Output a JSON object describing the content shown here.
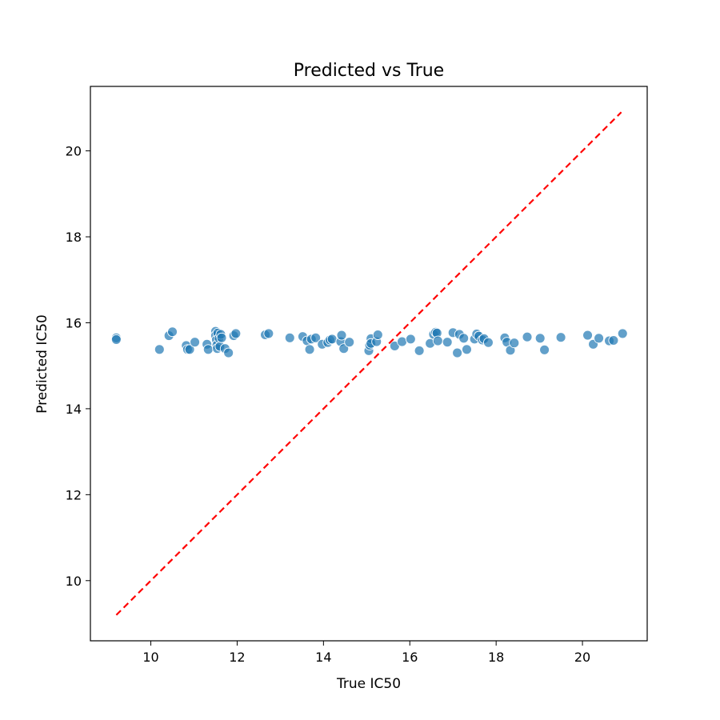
{
  "chart_data": {
    "type": "scatter",
    "title": "Predicted vs True",
    "xlabel": "True IC50",
    "ylabel": "Predicted IC50",
    "xlim": [
      8.6,
      21.5
    ],
    "ylim": [
      8.6,
      21.5
    ],
    "xticks": [
      "10",
      "12",
      "14",
      "16",
      "18",
      "20"
    ],
    "yticks": [
      "10",
      "12",
      "14",
      "16",
      "18",
      "20"
    ],
    "grid": false,
    "colors": {
      "points": "#1f77b4",
      "reference": "#ff0000"
    },
    "reference_line": {
      "x": [
        9.2,
        20.9
      ],
      "y": [
        9.2,
        20.9
      ]
    },
    "points": [
      {
        "x": 9.2,
        "y": 15.65
      },
      {
        "x": 9.2,
        "y": 15.61
      },
      {
        "x": 10.2,
        "y": 15.38
      },
      {
        "x": 10.42,
        "y": 15.7
      },
      {
        "x": 10.5,
        "y": 15.79
      },
      {
        "x": 10.82,
        "y": 15.47
      },
      {
        "x": 10.85,
        "y": 15.38
      },
      {
        "x": 10.9,
        "y": 15.38
      },
      {
        "x": 11.02,
        "y": 15.55
      },
      {
        "x": 11.3,
        "y": 15.5
      },
      {
        "x": 11.33,
        "y": 15.38
      },
      {
        "x": 11.5,
        "y": 15.8
      },
      {
        "x": 11.5,
        "y": 15.7
      },
      {
        "x": 11.52,
        "y": 15.6
      },
      {
        "x": 11.53,
        "y": 15.48
      },
      {
        "x": 11.54,
        "y": 15.4
      },
      {
        "x": 11.55,
        "y": 15.76
      },
      {
        "x": 11.58,
        "y": 15.64
      },
      {
        "x": 11.6,
        "y": 15.45
      },
      {
        "x": 11.62,
        "y": 15.73
      },
      {
        "x": 11.64,
        "y": 15.65
      },
      {
        "x": 11.72,
        "y": 15.4
      },
      {
        "x": 11.8,
        "y": 15.3
      },
      {
        "x": 11.92,
        "y": 15.7
      },
      {
        "x": 11.97,
        "y": 15.75
      },
      {
        "x": 12.65,
        "y": 15.72
      },
      {
        "x": 12.73,
        "y": 15.75
      },
      {
        "x": 13.22,
        "y": 15.65
      },
      {
        "x": 13.52,
        "y": 15.68
      },
      {
        "x": 13.62,
        "y": 15.58
      },
      {
        "x": 13.68,
        "y": 15.38
      },
      {
        "x": 13.72,
        "y": 15.62
      },
      {
        "x": 13.82,
        "y": 15.65
      },
      {
        "x": 13.97,
        "y": 15.5
      },
      {
        "x": 14.1,
        "y": 15.54
      },
      {
        "x": 14.15,
        "y": 15.6
      },
      {
        "x": 14.2,
        "y": 15.62
      },
      {
        "x": 14.4,
        "y": 15.56
      },
      {
        "x": 14.42,
        "y": 15.71
      },
      {
        "x": 14.47,
        "y": 15.4
      },
      {
        "x": 14.6,
        "y": 15.55
      },
      {
        "x": 15.05,
        "y": 15.35
      },
      {
        "x": 15.07,
        "y": 15.48
      },
      {
        "x": 15.1,
        "y": 15.63
      },
      {
        "x": 15.1,
        "y": 15.52
      },
      {
        "x": 15.23,
        "y": 15.56
      },
      {
        "x": 15.26,
        "y": 15.72
      },
      {
        "x": 15.65,
        "y": 15.46
      },
      {
        "x": 15.82,
        "y": 15.56
      },
      {
        "x": 16.02,
        "y": 15.62
      },
      {
        "x": 16.22,
        "y": 15.35
      },
      {
        "x": 16.47,
        "y": 15.52
      },
      {
        "x": 16.55,
        "y": 15.73
      },
      {
        "x": 16.6,
        "y": 15.78
      },
      {
        "x": 16.63,
        "y": 15.76
      },
      {
        "x": 16.65,
        "y": 15.58
      },
      {
        "x": 16.87,
        "y": 15.55
      },
      {
        "x": 17.0,
        "y": 15.77
      },
      {
        "x": 17.1,
        "y": 15.3
      },
      {
        "x": 17.15,
        "y": 15.73
      },
      {
        "x": 17.25,
        "y": 15.64
      },
      {
        "x": 17.32,
        "y": 15.38
      },
      {
        "x": 17.5,
        "y": 15.62
      },
      {
        "x": 17.55,
        "y": 15.74
      },
      {
        "x": 17.6,
        "y": 15.69
      },
      {
        "x": 17.68,
        "y": 15.6
      },
      {
        "x": 17.72,
        "y": 15.63
      },
      {
        "x": 17.82,
        "y": 15.54
      },
      {
        "x": 18.2,
        "y": 15.65
      },
      {
        "x": 18.25,
        "y": 15.55
      },
      {
        "x": 18.33,
        "y": 15.36
      },
      {
        "x": 18.42,
        "y": 15.53
      },
      {
        "x": 18.72,
        "y": 15.67
      },
      {
        "x": 19.02,
        "y": 15.64
      },
      {
        "x": 19.12,
        "y": 15.37
      },
      {
        "x": 19.5,
        "y": 15.66
      },
      {
        "x": 20.12,
        "y": 15.71
      },
      {
        "x": 20.25,
        "y": 15.5
      },
      {
        "x": 20.38,
        "y": 15.64
      },
      {
        "x": 20.62,
        "y": 15.58
      },
      {
        "x": 20.72,
        "y": 15.59
      },
      {
        "x": 20.93,
        "y": 15.75
      }
    ]
  }
}
